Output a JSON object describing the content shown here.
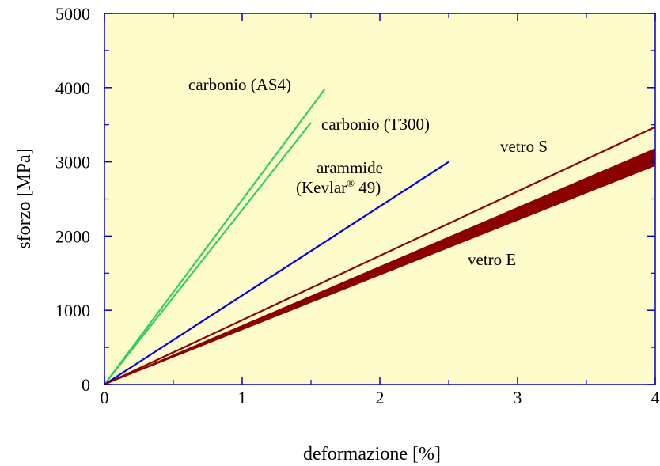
{
  "chart_data": {
    "type": "line",
    "title": "",
    "xlabel": "deformazione [%]",
    "ylabel": "sforzo [MPa]",
    "xlim": [
      0,
      4
    ],
    "ylim": [
      0,
      5000
    ],
    "x_ticks": [
      "0",
      "1",
      "2",
      "3",
      "4"
    ],
    "y_ticks": [
      "0",
      "1000",
      "2000",
      "3000",
      "4000",
      "5000"
    ],
    "grid": false,
    "legend": "none",
    "plot_background": "#FFFCCB",
    "series": [
      {
        "label": "carbonio (AS4)",
        "color": "#33CC66",
        "x": [
          0,
          1.6
        ],
        "y": [
          0,
          3980
        ]
      },
      {
        "label": "carbonio (T300)",
        "color": "#33CC66",
        "x": [
          0,
          1.5
        ],
        "y": [
          0,
          3530
        ]
      },
      {
        "label_line1": "arammide",
        "label_line2": "(Kevlar",
        "label_sup": "®",
        "label_line2_end": " 49)",
        "color": "#0000DD",
        "x": [
          0,
          2.5
        ],
        "y": [
          0,
          3000
        ]
      },
      {
        "label": "vetro S",
        "color": "#8B0000",
        "x": [
          0,
          4
        ],
        "y": [
          0,
          3470
        ]
      }
    ],
    "bands": [
      {
        "label": "vetro E",
        "color": "#8B0000",
        "x": [
          0,
          4
        ],
        "y_low": [
          0,
          2950
        ],
        "y_high": [
          0,
          3180
        ]
      }
    ]
  }
}
